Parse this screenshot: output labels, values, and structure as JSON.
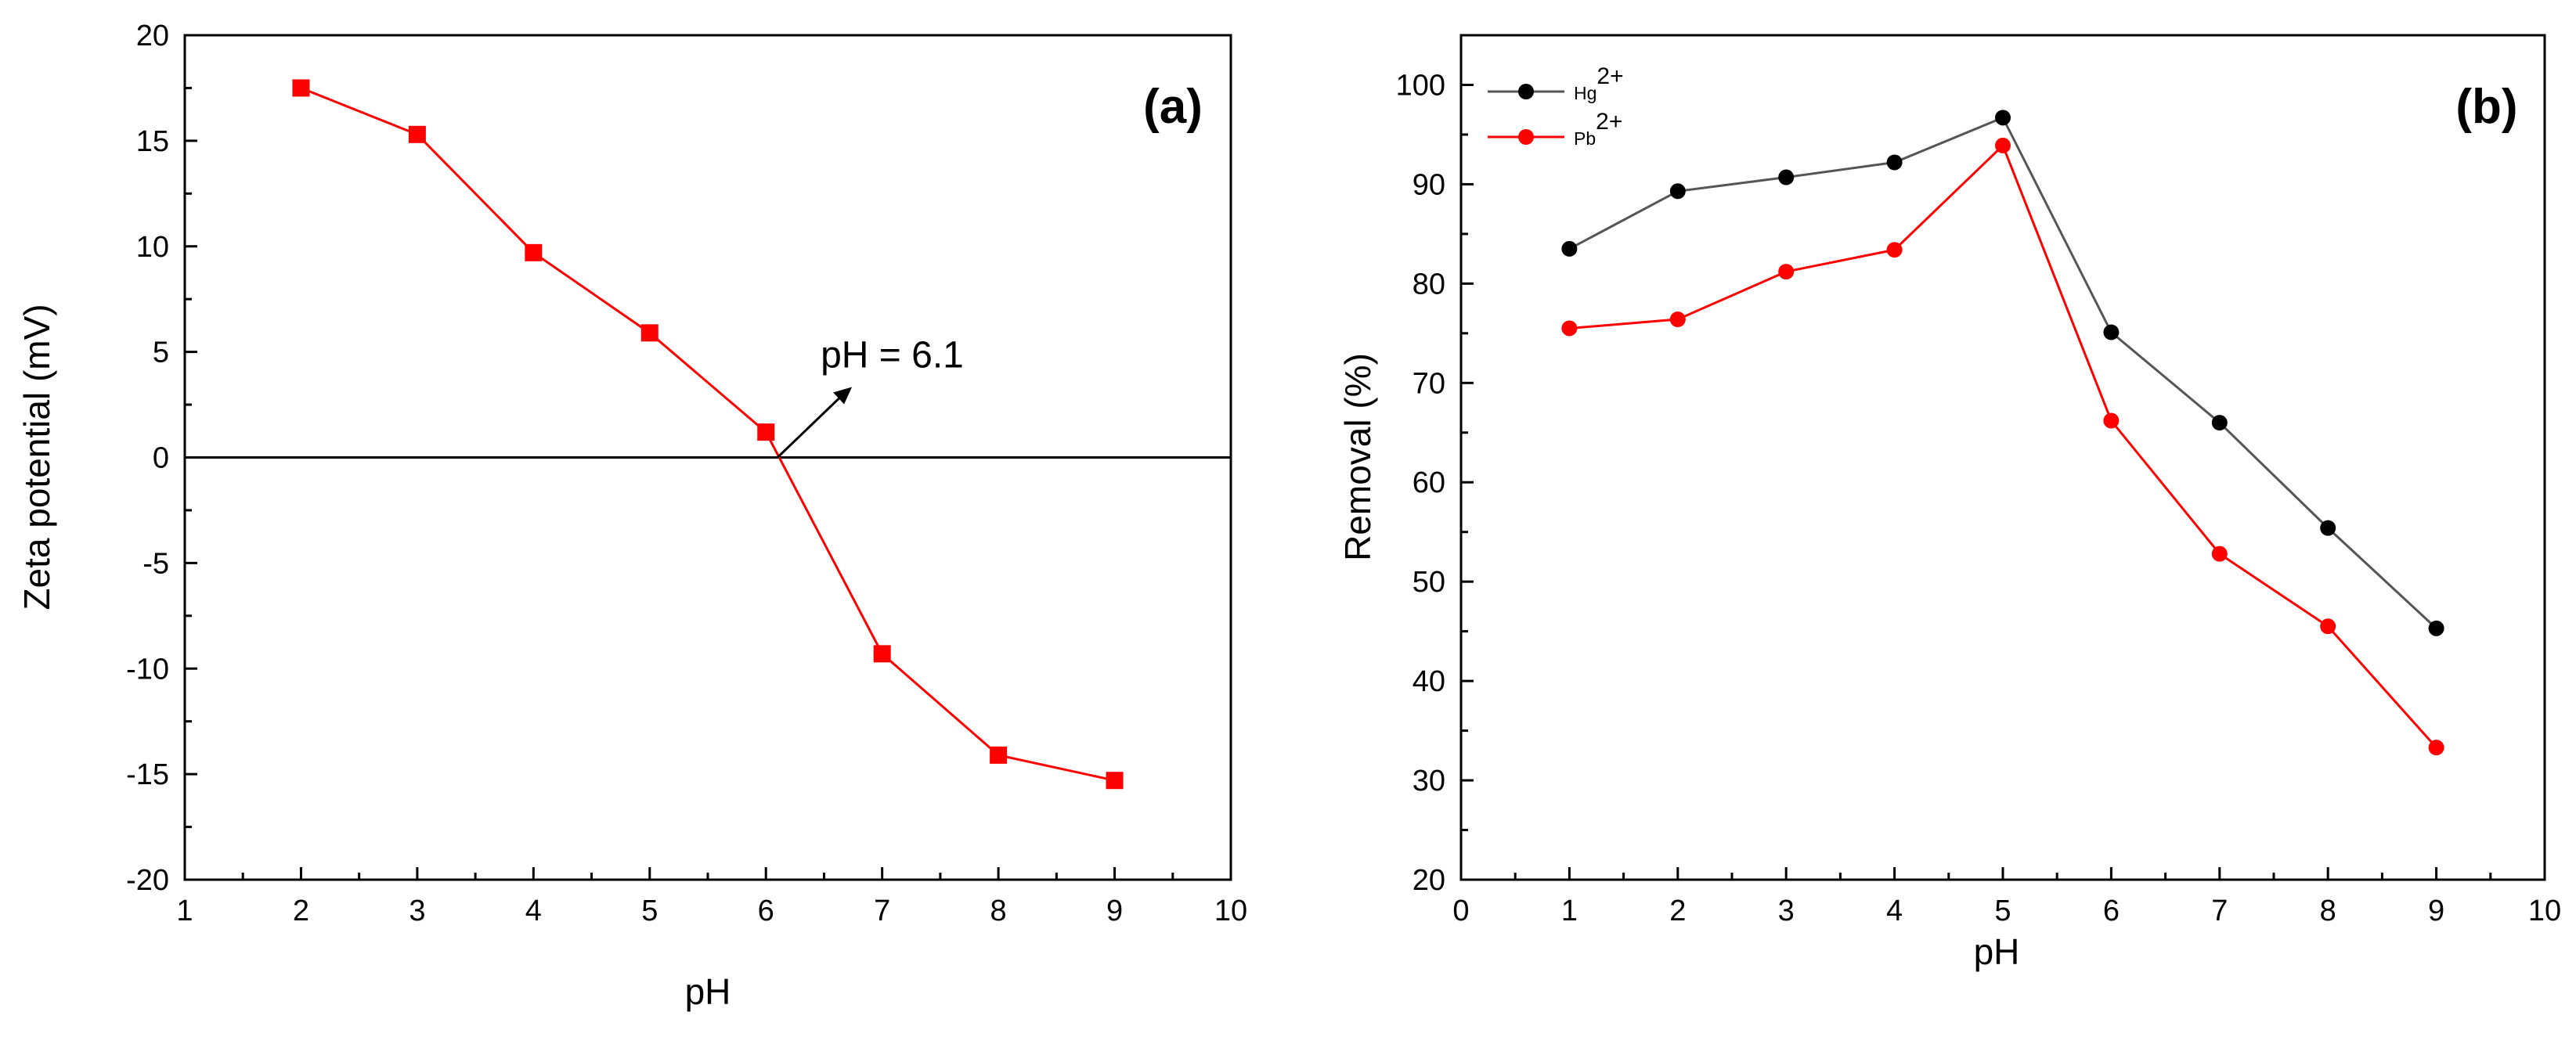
{
  "chart_data": [
    {
      "type": "line",
      "panel_label": "(a)",
      "xlabel": "pH",
      "ylabel": "Zeta potential (mV)",
      "xlim": [
        1,
        10
      ],
      "ylim": [
        -20,
        20
      ],
      "xticks": [
        "1",
        "2",
        "3",
        "4",
        "5",
        "6",
        "7",
        "8",
        "9",
        "10"
      ],
      "yticks": [
        "20",
        "15",
        "10",
        "5",
        "0",
        "-5",
        "-10",
        "-15",
        "-20"
      ],
      "series": [
        {
          "name": "Zeta potential",
          "color": "#ff0000",
          "marker": "square",
          "x": [
            2,
            3,
            4,
            5,
            6,
            7,
            8,
            9
          ],
          "values": [
            17.5,
            15.3,
            9.7,
            5.9,
            1.2,
            -9.3,
            -14.1,
            -15.3
          ]
        }
      ],
      "reference_line": {
        "y": 0,
        "color": "#000000"
      },
      "annotation": {
        "text": "pH = 6.1",
        "x": 6.1,
        "y": 0
      },
      "grid": false
    },
    {
      "type": "line",
      "panel_label": "(b)",
      "xlabel": "pH",
      "ylabel": "Removal (%)",
      "xlim": [
        0,
        10
      ],
      "ylim": [
        20,
        105
      ],
      "xticks": [
        "0",
        "1",
        "2",
        "3",
        "4",
        "5",
        "6",
        "7",
        "8",
        "9",
        "10"
      ],
      "yticks": [
        "100",
        "90",
        "80",
        "70",
        "60",
        "50",
        "40",
        "30",
        "20"
      ],
      "legend_position": "top-left",
      "series": [
        {
          "name_base": "Hg",
          "name_sup": "2+",
          "color": "#000000",
          "line_color": "#555555",
          "marker": "circle",
          "x": [
            1,
            2,
            3,
            4,
            5,
            6,
            7,
            8,
            9
          ],
          "values": [
            83.5,
            89.3,
            90.7,
            92.2,
            96.7,
            75.1,
            66.0,
            55.4,
            45.3
          ]
        },
        {
          "name_base": "Pb",
          "name_sup": "2+",
          "color": "#ff0000",
          "line_color": "#ff0000",
          "marker": "circle",
          "x": [
            1,
            2,
            3,
            4,
            5,
            6,
            7,
            8,
            9
          ],
          "values": [
            75.5,
            76.4,
            81.2,
            83.4,
            93.9,
            66.2,
            52.8,
            45.5,
            33.3
          ]
        }
      ],
      "grid": false
    }
  ]
}
